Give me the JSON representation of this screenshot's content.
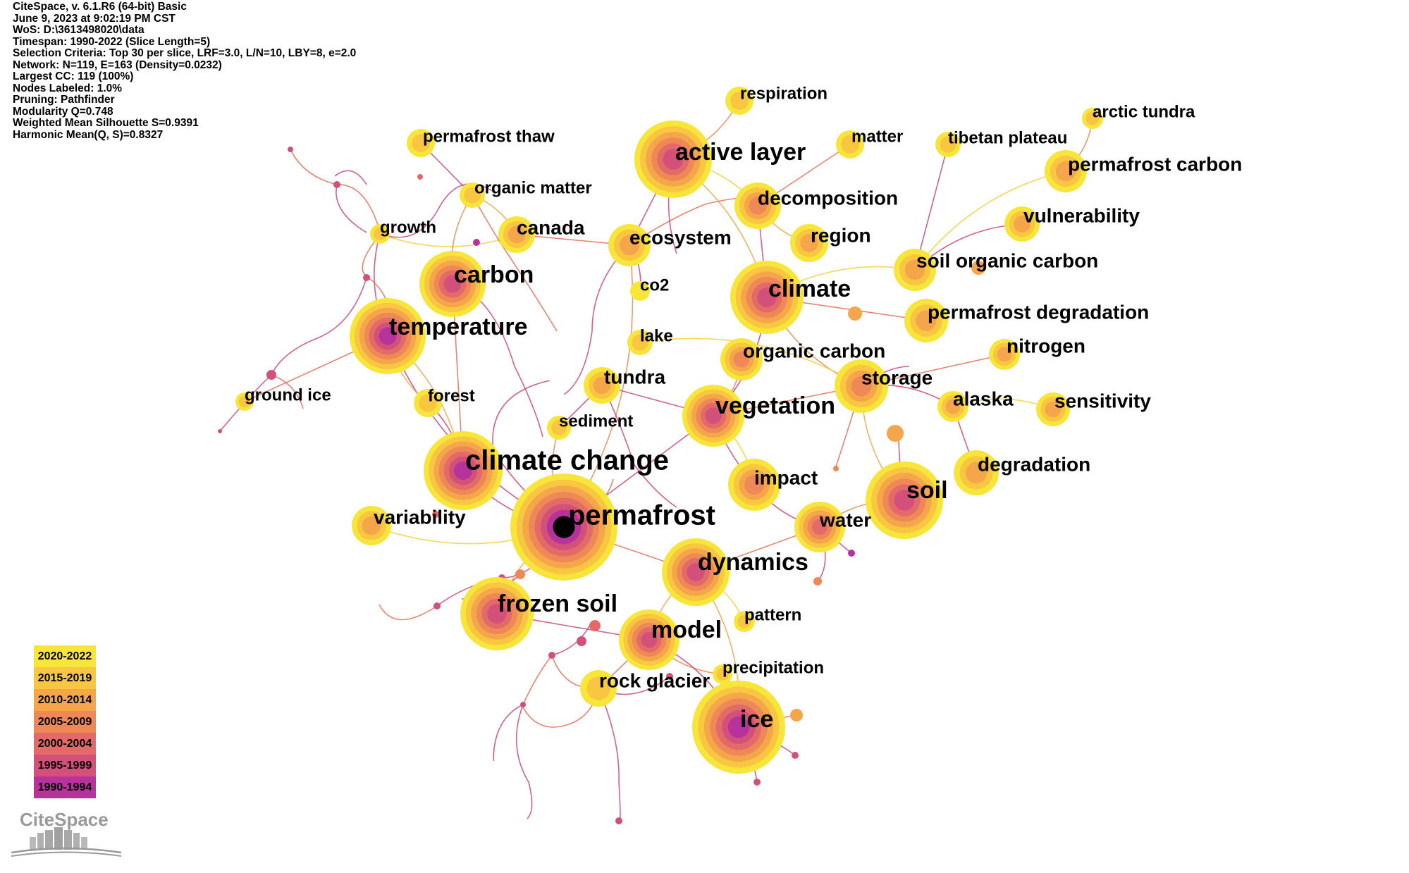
{
  "info": [
    "CiteSpace, v. 6.1.R6 (64-bit) Basic",
    "June 9, 2023 at 9:02:19 PM CST",
    "WoS: D:\\3613498020\\data",
    "Timespan: 1990-2022 (Slice Length=5)",
    "Selection Criteria: Top 30 per slice, LRF=3.0, L/N=10, LBY=8, e=2.0",
    "Network: N=119, E=163 (Density=0.0232)",
    "Largest CC: 119 (100%)",
    "Nodes Labeled: 1.0%",
    "Pruning: Pathfinder",
    "Modularity Q=0.748",
    "Weighted Mean Silhouette S=0.9391",
    "Harmonic Mean(Q, S)=0.8327"
  ],
  "legend": [
    {
      "label": "2020-2022",
      "color": "#f7e53a"
    },
    {
      "label": "2015-2019",
      "color": "#f8c640"
    },
    {
      "label": "2010-2014",
      "color": "#f5a54a"
    },
    {
      "label": "2005-2009",
      "color": "#ee8856"
    },
    {
      "label": "2000-2004",
      "color": "#e26a68"
    },
    {
      "label": "1995-1999",
      "color": "#d3507a"
    },
    {
      "label": "1990-1994",
      "color": "#b5339a"
    }
  ],
  "logo_text": "CiteSpace",
  "nodes": [
    {
      "label": "permafrost",
      "size": "xl"
    },
    {
      "label": "climate change",
      "size": "xl"
    },
    {
      "label": "active layer",
      "size": "l"
    },
    {
      "label": "temperature",
      "size": "l"
    },
    {
      "label": "climate",
      "size": "l"
    },
    {
      "label": "carbon",
      "size": "l"
    },
    {
      "label": "soil",
      "size": "l"
    },
    {
      "label": "ice",
      "size": "l"
    },
    {
      "label": "dynamics",
      "size": "l"
    },
    {
      "label": "frozen soil",
      "size": "l"
    },
    {
      "label": "model",
      "size": "l"
    },
    {
      "label": "vegetation",
      "size": "l"
    },
    {
      "label": "water",
      "size": "m"
    },
    {
      "label": "impact",
      "size": "m"
    },
    {
      "label": "storage",
      "size": "m"
    },
    {
      "label": "soil organic carbon",
      "size": "m"
    },
    {
      "label": "decomposition",
      "size": "m"
    },
    {
      "label": "permafrost carbon",
      "size": "m"
    },
    {
      "label": "permafrost degradation",
      "size": "m"
    },
    {
      "label": "degradation",
      "size": "m"
    },
    {
      "label": "organic carbon",
      "size": "m"
    },
    {
      "label": "ecosystem",
      "size": "m"
    },
    {
      "label": "vulnerability",
      "size": "m"
    },
    {
      "label": "nitrogen",
      "size": "m"
    },
    {
      "label": "sensitivity",
      "size": "m"
    },
    {
      "label": "region",
      "size": "m"
    },
    {
      "label": "variability",
      "size": "m"
    },
    {
      "label": "tundra",
      "size": "m"
    },
    {
      "label": "alaska",
      "size": "m"
    },
    {
      "label": "canada",
      "size": "m"
    },
    {
      "label": "rock glacier",
      "size": "m"
    },
    {
      "label": "respiration",
      "size": "s"
    },
    {
      "label": "matter",
      "size": "s"
    },
    {
      "label": "tibetan plateau",
      "size": "s"
    },
    {
      "label": "arctic tundra",
      "size": "s"
    },
    {
      "label": "permafrost thaw",
      "size": "s"
    },
    {
      "label": "organic matter",
      "size": "s"
    },
    {
      "label": "growth",
      "size": "s"
    },
    {
      "label": "co2",
      "size": "s"
    },
    {
      "label": "lake",
      "size": "s"
    },
    {
      "label": "ground ice",
      "size": "s"
    },
    {
      "label": "forest",
      "size": "s"
    },
    {
      "label": "sediment",
      "size": "s"
    },
    {
      "label": "pattern",
      "size": "s"
    },
    {
      "label": "precipitation",
      "size": "s"
    }
  ]
}
